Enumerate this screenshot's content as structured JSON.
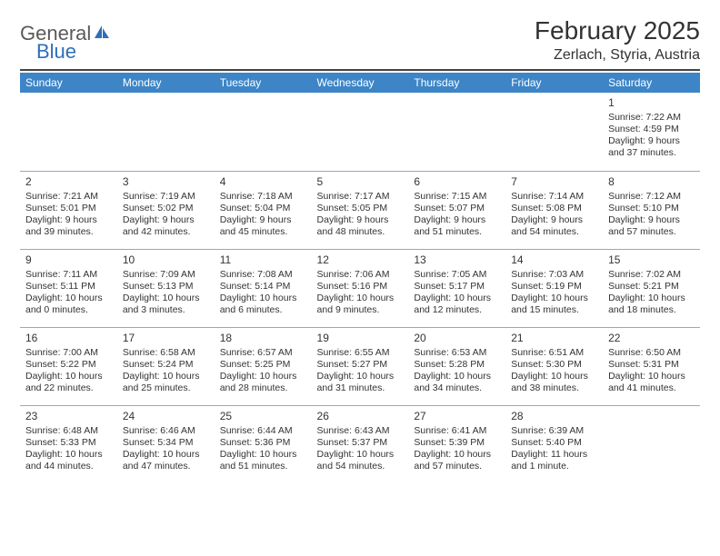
{
  "brand": {
    "word1": "General",
    "word2": "Blue"
  },
  "title": "February 2025",
  "location": "Zerlach, Styria, Austria",
  "colors": {
    "header_bg": "#3d85c6",
    "header_text": "#ffffff",
    "cell_border": "#8faac7",
    "body_text": "#333333",
    "logo_gray": "#5a5a5a",
    "logo_blue": "#2e6fb7",
    "rule": "#444444",
    "background": "#ffffff"
  },
  "day_headers": [
    "Sunday",
    "Monday",
    "Tuesday",
    "Wednesday",
    "Thursday",
    "Friday",
    "Saturday"
  ],
  "weeks": [
    [
      null,
      null,
      null,
      null,
      null,
      null,
      {
        "n": "1",
        "sr": "Sunrise: 7:22 AM",
        "ss": "Sunset: 4:59 PM",
        "d1": "Daylight: 9 hours",
        "d2": "and 37 minutes."
      }
    ],
    [
      {
        "n": "2",
        "sr": "Sunrise: 7:21 AM",
        "ss": "Sunset: 5:01 PM",
        "d1": "Daylight: 9 hours",
        "d2": "and 39 minutes."
      },
      {
        "n": "3",
        "sr": "Sunrise: 7:19 AM",
        "ss": "Sunset: 5:02 PM",
        "d1": "Daylight: 9 hours",
        "d2": "and 42 minutes."
      },
      {
        "n": "4",
        "sr": "Sunrise: 7:18 AM",
        "ss": "Sunset: 5:04 PM",
        "d1": "Daylight: 9 hours",
        "d2": "and 45 minutes."
      },
      {
        "n": "5",
        "sr": "Sunrise: 7:17 AM",
        "ss": "Sunset: 5:05 PM",
        "d1": "Daylight: 9 hours",
        "d2": "and 48 minutes."
      },
      {
        "n": "6",
        "sr": "Sunrise: 7:15 AM",
        "ss": "Sunset: 5:07 PM",
        "d1": "Daylight: 9 hours",
        "d2": "and 51 minutes."
      },
      {
        "n": "7",
        "sr": "Sunrise: 7:14 AM",
        "ss": "Sunset: 5:08 PM",
        "d1": "Daylight: 9 hours",
        "d2": "and 54 minutes."
      },
      {
        "n": "8",
        "sr": "Sunrise: 7:12 AM",
        "ss": "Sunset: 5:10 PM",
        "d1": "Daylight: 9 hours",
        "d2": "and 57 minutes."
      }
    ],
    [
      {
        "n": "9",
        "sr": "Sunrise: 7:11 AM",
        "ss": "Sunset: 5:11 PM",
        "d1": "Daylight: 10 hours",
        "d2": "and 0 minutes."
      },
      {
        "n": "10",
        "sr": "Sunrise: 7:09 AM",
        "ss": "Sunset: 5:13 PM",
        "d1": "Daylight: 10 hours",
        "d2": "and 3 minutes."
      },
      {
        "n": "11",
        "sr": "Sunrise: 7:08 AM",
        "ss": "Sunset: 5:14 PM",
        "d1": "Daylight: 10 hours",
        "d2": "and 6 minutes."
      },
      {
        "n": "12",
        "sr": "Sunrise: 7:06 AM",
        "ss": "Sunset: 5:16 PM",
        "d1": "Daylight: 10 hours",
        "d2": "and 9 minutes."
      },
      {
        "n": "13",
        "sr": "Sunrise: 7:05 AM",
        "ss": "Sunset: 5:17 PM",
        "d1": "Daylight: 10 hours",
        "d2": "and 12 minutes."
      },
      {
        "n": "14",
        "sr": "Sunrise: 7:03 AM",
        "ss": "Sunset: 5:19 PM",
        "d1": "Daylight: 10 hours",
        "d2": "and 15 minutes."
      },
      {
        "n": "15",
        "sr": "Sunrise: 7:02 AM",
        "ss": "Sunset: 5:21 PM",
        "d1": "Daylight: 10 hours",
        "d2": "and 18 minutes."
      }
    ],
    [
      {
        "n": "16",
        "sr": "Sunrise: 7:00 AM",
        "ss": "Sunset: 5:22 PM",
        "d1": "Daylight: 10 hours",
        "d2": "and 22 minutes."
      },
      {
        "n": "17",
        "sr": "Sunrise: 6:58 AM",
        "ss": "Sunset: 5:24 PM",
        "d1": "Daylight: 10 hours",
        "d2": "and 25 minutes."
      },
      {
        "n": "18",
        "sr": "Sunrise: 6:57 AM",
        "ss": "Sunset: 5:25 PM",
        "d1": "Daylight: 10 hours",
        "d2": "and 28 minutes."
      },
      {
        "n": "19",
        "sr": "Sunrise: 6:55 AM",
        "ss": "Sunset: 5:27 PM",
        "d1": "Daylight: 10 hours",
        "d2": "and 31 minutes."
      },
      {
        "n": "20",
        "sr": "Sunrise: 6:53 AM",
        "ss": "Sunset: 5:28 PM",
        "d1": "Daylight: 10 hours",
        "d2": "and 34 minutes."
      },
      {
        "n": "21",
        "sr": "Sunrise: 6:51 AM",
        "ss": "Sunset: 5:30 PM",
        "d1": "Daylight: 10 hours",
        "d2": "and 38 minutes."
      },
      {
        "n": "22",
        "sr": "Sunrise: 6:50 AM",
        "ss": "Sunset: 5:31 PM",
        "d1": "Daylight: 10 hours",
        "d2": "and 41 minutes."
      }
    ],
    [
      {
        "n": "23",
        "sr": "Sunrise: 6:48 AM",
        "ss": "Sunset: 5:33 PM",
        "d1": "Daylight: 10 hours",
        "d2": "and 44 minutes."
      },
      {
        "n": "24",
        "sr": "Sunrise: 6:46 AM",
        "ss": "Sunset: 5:34 PM",
        "d1": "Daylight: 10 hours",
        "d2": "and 47 minutes."
      },
      {
        "n": "25",
        "sr": "Sunrise: 6:44 AM",
        "ss": "Sunset: 5:36 PM",
        "d1": "Daylight: 10 hours",
        "d2": "and 51 minutes."
      },
      {
        "n": "26",
        "sr": "Sunrise: 6:43 AM",
        "ss": "Sunset: 5:37 PM",
        "d1": "Daylight: 10 hours",
        "d2": "and 54 minutes."
      },
      {
        "n": "27",
        "sr": "Sunrise: 6:41 AM",
        "ss": "Sunset: 5:39 PM",
        "d1": "Daylight: 10 hours",
        "d2": "and 57 minutes."
      },
      {
        "n": "28",
        "sr": "Sunrise: 6:39 AM",
        "ss": "Sunset: 5:40 PM",
        "d1": "Daylight: 11 hours",
        "d2": "and 1 minute."
      },
      null
    ]
  ]
}
